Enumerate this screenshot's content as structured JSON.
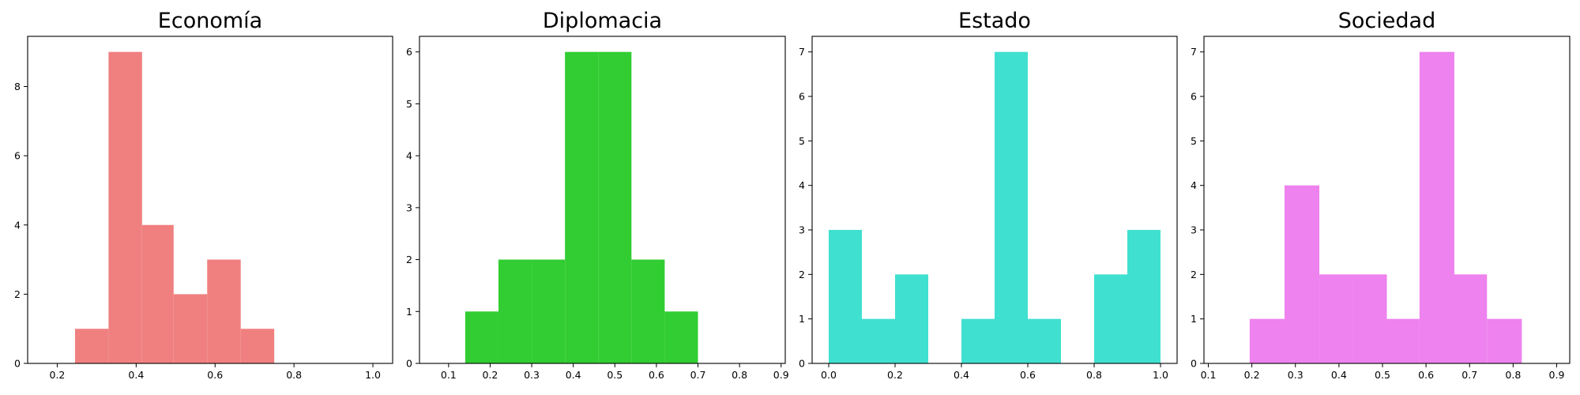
{
  "chart_data": [
    {
      "type": "histogram",
      "title": "Economía",
      "color": "#f08080",
      "xlim": [
        0.125,
        1.05
      ],
      "ylim": [
        0,
        9.45
      ],
      "xticks": [
        0.2,
        0.4,
        0.6,
        0.8,
        1.0
      ],
      "xtick_labels": [
        "0.2",
        "0.4",
        "0.6",
        "0.8",
        "1.0"
      ],
      "yticks": [
        0,
        2,
        4,
        6,
        8
      ],
      "ytick_labels": [
        "0",
        "2",
        "4",
        "6",
        "8"
      ],
      "bins": [
        {
          "start": 0.245,
          "end": 0.33,
          "count": 1
        },
        {
          "start": 0.33,
          "end": 0.415,
          "count": 9
        },
        {
          "start": 0.415,
          "end": 0.495,
          "count": 4
        },
        {
          "start": 0.495,
          "end": 0.58,
          "count": 2
        },
        {
          "start": 0.58,
          "end": 0.665,
          "count": 3
        },
        {
          "start": 0.665,
          "end": 0.75,
          "count": 1
        }
      ],
      "grid": false
    },
    {
      "type": "histogram",
      "title": "Diplomacia",
      "color": "#32cd32",
      "xlim": [
        0.03,
        0.91
      ],
      "ylim": [
        0,
        6.3
      ],
      "xticks": [
        0.1,
        0.2,
        0.3,
        0.4,
        0.5,
        0.6,
        0.7,
        0.8,
        0.9
      ],
      "xtick_labels": [
        "0.1",
        "0.2",
        "0.3",
        "0.4",
        "0.5",
        "0.6",
        "0.7",
        "0.8",
        "0.9"
      ],
      "yticks": [
        0,
        1,
        2,
        3,
        4,
        5,
        6
      ],
      "ytick_labels": [
        "0",
        "1",
        "2",
        "3",
        "4",
        "5",
        "6"
      ],
      "bins": [
        {
          "start": 0.14,
          "end": 0.22,
          "count": 1
        },
        {
          "start": 0.22,
          "end": 0.3,
          "count": 2
        },
        {
          "start": 0.3,
          "end": 0.38,
          "count": 2
        },
        {
          "start": 0.38,
          "end": 0.46,
          "count": 6
        },
        {
          "start": 0.46,
          "end": 0.54,
          "count": 6
        },
        {
          "start": 0.54,
          "end": 0.62,
          "count": 2
        },
        {
          "start": 0.62,
          "end": 0.7,
          "count": 1
        }
      ],
      "grid": false
    },
    {
      "type": "histogram",
      "title": "Estado",
      "color": "#40e0d0",
      "xlim": [
        -0.05,
        1.05
      ],
      "ylim": [
        0,
        7.35
      ],
      "xticks": [
        0.0,
        0.2,
        0.4,
        0.6,
        0.8,
        1.0
      ],
      "xtick_labels": [
        "0.0",
        "0.2",
        "0.4",
        "0.6",
        "0.8",
        "1.0"
      ],
      "yticks": [
        0,
        1,
        2,
        3,
        4,
        5,
        6,
        7
      ],
      "ytick_labels": [
        "0",
        "1",
        "2",
        "3",
        "4",
        "5",
        "6",
        "7"
      ],
      "bins": [
        {
          "start": 0.0,
          "end": 0.1,
          "count": 3
        },
        {
          "start": 0.1,
          "end": 0.2,
          "count": 1
        },
        {
          "start": 0.2,
          "end": 0.3,
          "count": 2
        },
        {
          "start": 0.3,
          "end": 0.4,
          "count": 0
        },
        {
          "start": 0.4,
          "end": 0.5,
          "count": 1
        },
        {
          "start": 0.5,
          "end": 0.6,
          "count": 7
        },
        {
          "start": 0.6,
          "end": 0.7,
          "count": 1
        },
        {
          "start": 0.7,
          "end": 0.8,
          "count": 0
        },
        {
          "start": 0.8,
          "end": 0.9,
          "count": 2
        },
        {
          "start": 0.9,
          "end": 1.0,
          "count": 3
        }
      ],
      "grid": false
    },
    {
      "type": "histogram",
      "title": "Sociedad",
      "color": "#ee82ee",
      "xlim": [
        0.09,
        0.93
      ],
      "ylim": [
        0,
        7.35
      ],
      "xticks": [
        0.1,
        0.2,
        0.3,
        0.4,
        0.5,
        0.6,
        0.7,
        0.8,
        0.9
      ],
      "xtick_labels": [
        "0.1",
        "0.2",
        "0.3",
        "0.4",
        "0.5",
        "0.6",
        "0.7",
        "0.8",
        "0.9"
      ],
      "yticks": [
        0,
        1,
        2,
        3,
        4,
        5,
        6,
        7
      ],
      "ytick_labels": [
        "0",
        "1",
        "2",
        "3",
        "4",
        "5",
        "6",
        "7"
      ],
      "bins": [
        {
          "start": 0.195,
          "end": 0.275,
          "count": 1
        },
        {
          "start": 0.275,
          "end": 0.355,
          "count": 4
        },
        {
          "start": 0.355,
          "end": 0.43,
          "count": 2
        },
        {
          "start": 0.43,
          "end": 0.51,
          "count": 2
        },
        {
          "start": 0.51,
          "end": 0.585,
          "count": 1
        },
        {
          "start": 0.585,
          "end": 0.665,
          "count": 7
        },
        {
          "start": 0.665,
          "end": 0.74,
          "count": 2
        },
        {
          "start": 0.74,
          "end": 0.82,
          "count": 1
        }
      ],
      "grid": false
    }
  ]
}
